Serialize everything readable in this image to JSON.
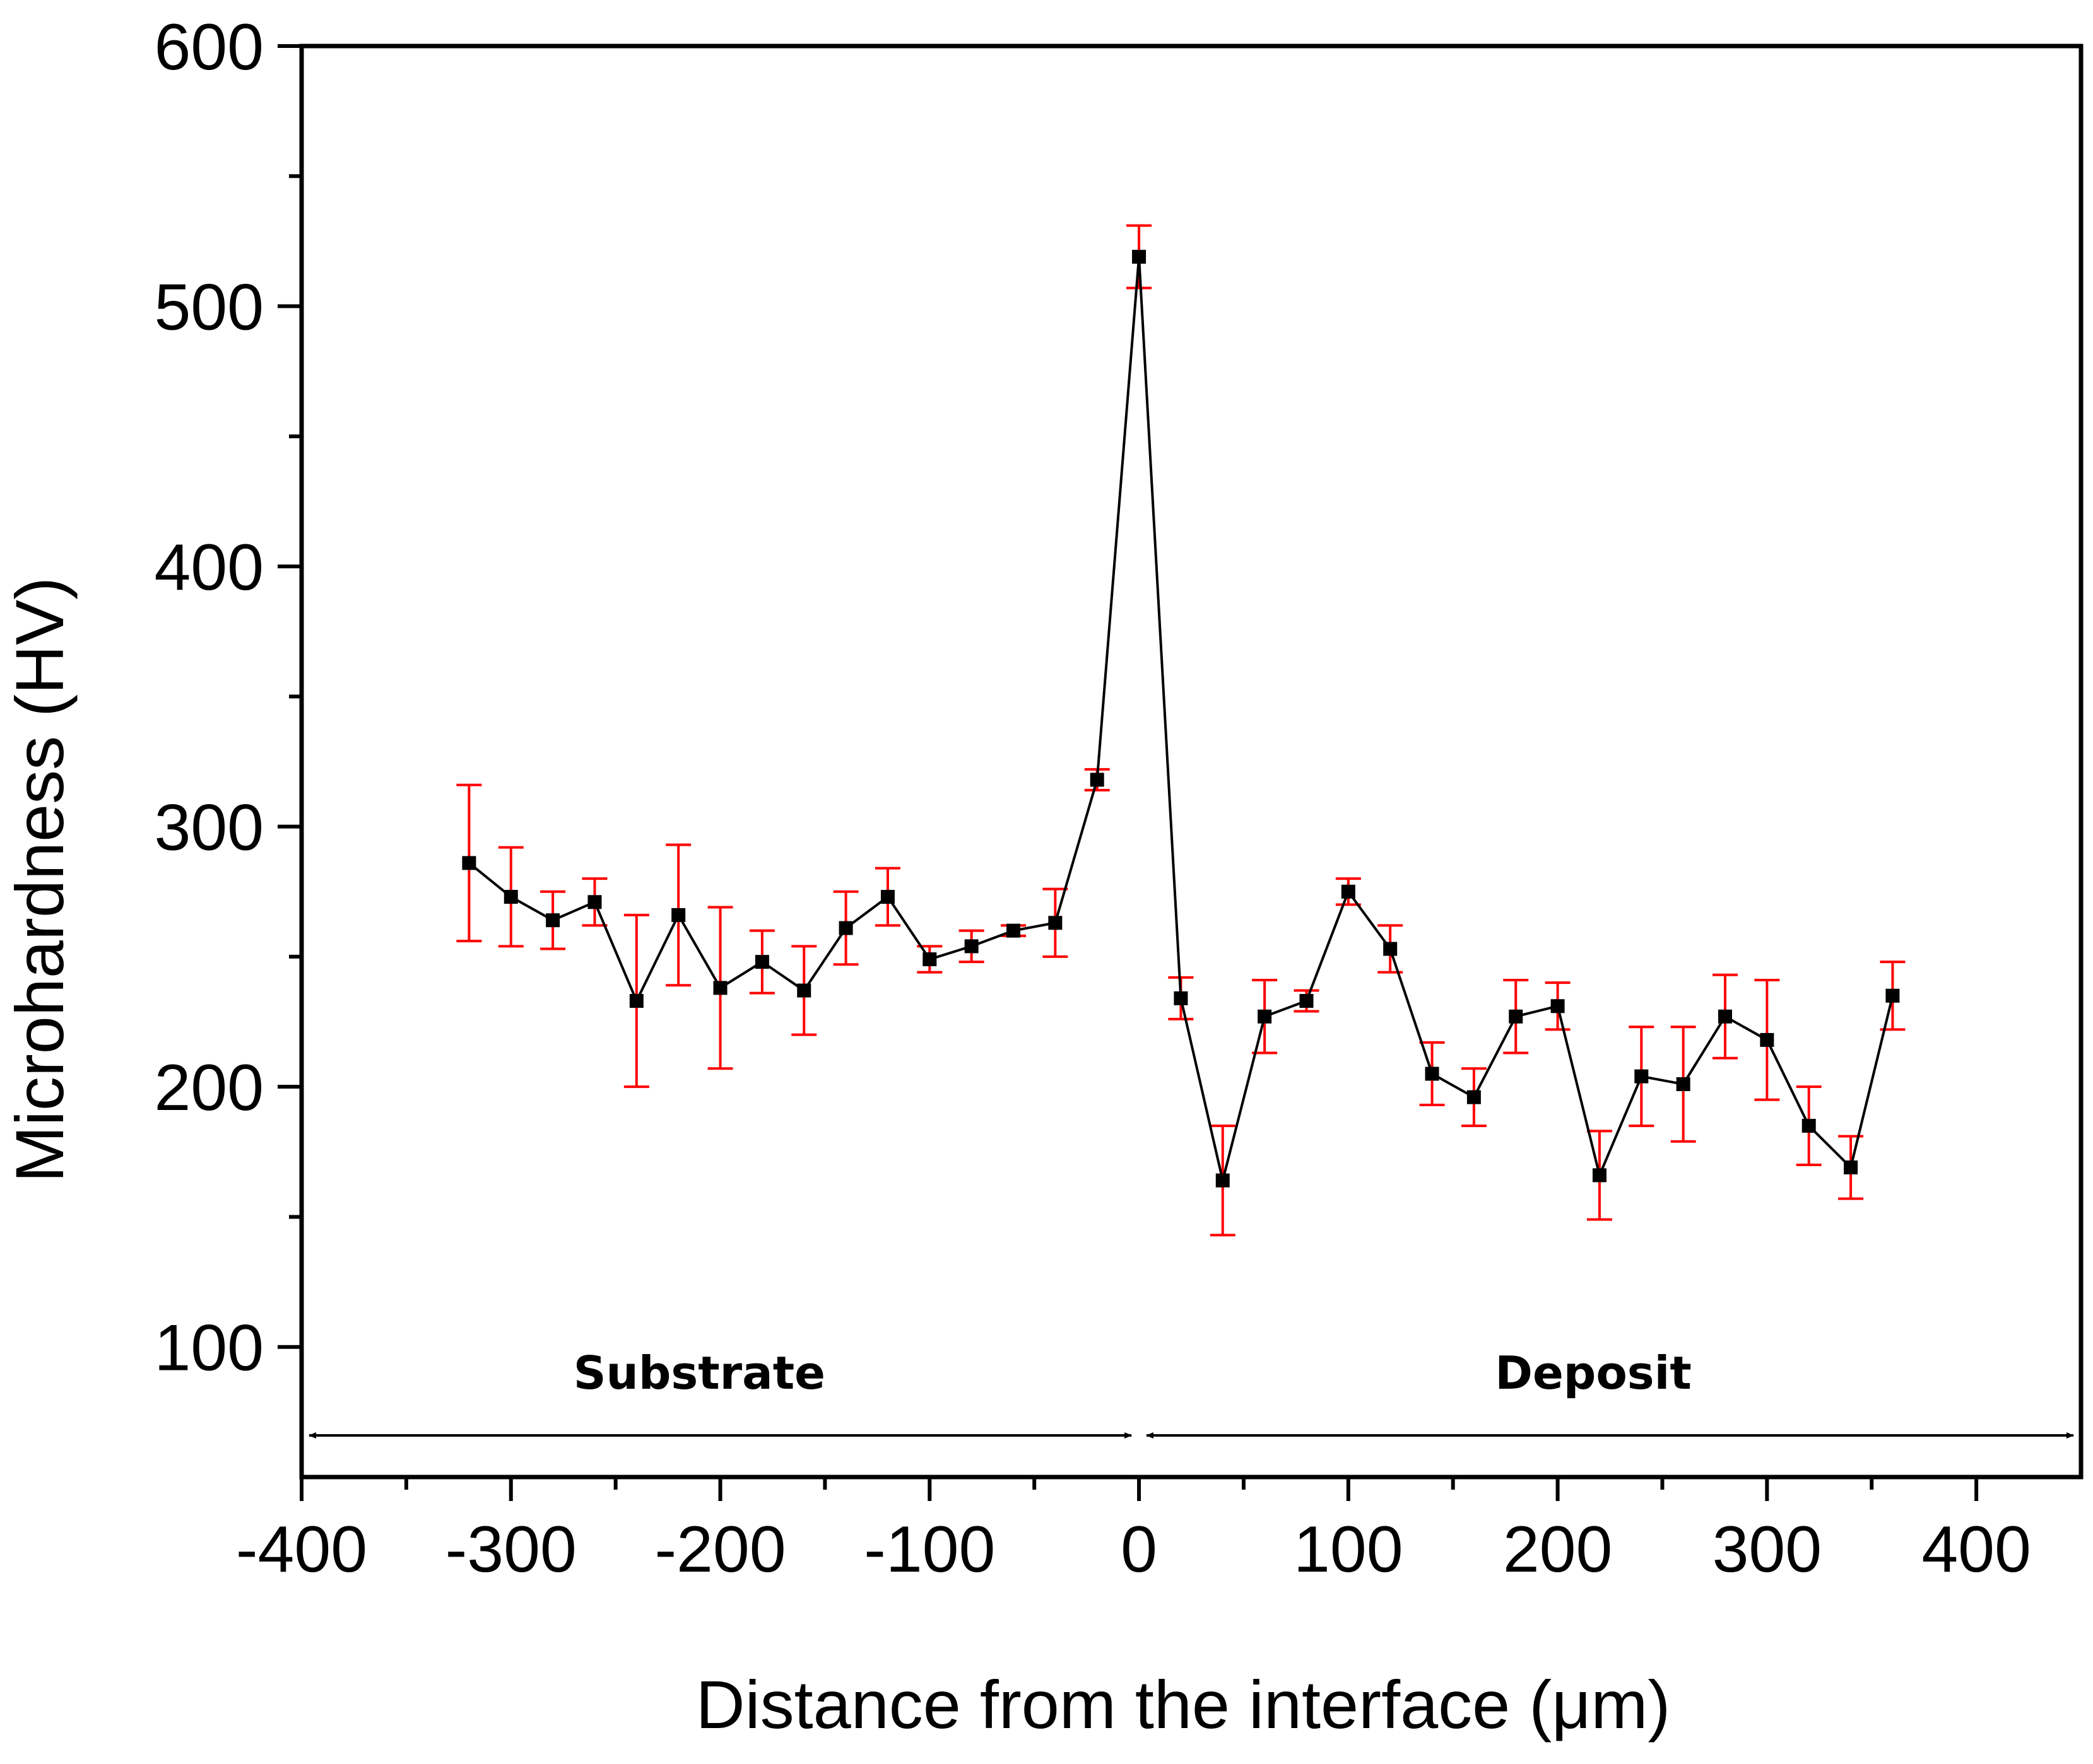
{
  "chart_data": {
    "type": "line",
    "title": "",
    "xlabel": "Distance from the interface (μm)",
    "ylabel": "Microhardness (HV)",
    "xlim": [
      -400,
      450
    ],
    "ylim": [
      50,
      600
    ],
    "xticks": [
      -400,
      -300,
      -200,
      -100,
      0,
      100,
      200,
      300,
      400
    ],
    "xtick_labels": [
      "-400",
      "-300",
      "-200",
      "-100",
      "0",
      "100",
      "200",
      "300",
      "400"
    ],
    "yticks": [
      100,
      200,
      300,
      400,
      500,
      600
    ],
    "ytick_labels": [
      "100",
      "200",
      "300",
      "400",
      "500",
      "600"
    ],
    "grid": false,
    "series": [
      {
        "name": "Microhardness",
        "line_color": "#000000",
        "marker": "square",
        "errorbar_color": "#ff0000",
        "x": [
          -320,
          -300,
          -280,
          -260,
          -240,
          -220,
          -200,
          -180,
          -160,
          -140,
          -120,
          -100,
          -80,
          -60,
          -40,
          -20,
          0,
          20,
          40,
          60,
          80,
          100,
          120,
          140,
          160,
          180,
          200,
          220,
          240,
          260,
          280,
          300,
          320,
          340,
          360
        ],
        "y": [
          286,
          273,
          264,
          271,
          233,
          266,
          238,
          248,
          237,
          261,
          273,
          249,
          254,
          260,
          263,
          318,
          519,
          234,
          164,
          227,
          233,
          275,
          253,
          205,
          196,
          227,
          231,
          166,
          204,
          201,
          227,
          218,
          185,
          169,
          235
        ],
        "err": [
          30,
          19,
          11,
          9,
          33,
          27,
          31,
          12,
          17,
          14,
          11,
          5,
          6,
          2,
          13,
          4,
          12,
          8,
          21,
          14,
          4,
          5,
          9,
          12,
          11,
          14,
          9,
          17,
          19,
          22,
          16,
          23,
          15,
          12,
          13
        ]
      }
    ],
    "annotations": [
      {
        "text": "Substrate",
        "x": -210,
        "y": 90
      },
      {
        "text": "Deposit",
        "x": 217,
        "y": 90
      }
    ],
    "arrows": [
      {
        "from": [
          -400,
          66
        ],
        "to": [
          0,
          66
        ]
      },
      {
        "from": [
          0,
          66
        ],
        "to": [
          450,
          66
        ]
      }
    ]
  }
}
